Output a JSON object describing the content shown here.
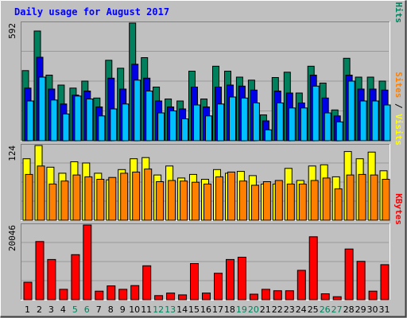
{
  "chart_data": {
    "type": "bar",
    "title": "Daily usage for August 2017",
    "colors": {
      "background": "#c0c0c0",
      "plot_bg": "#c0c0c0",
      "grid": "#9a9a9a",
      "hits": "#00805c",
      "files": "#0000e6",
      "pages": "#00c0ff",
      "visits": "#ffff00",
      "sites": "#ff8000",
      "kbytes": "#ff0000",
      "weekday_label": "#000000",
      "weekend_label": "#00805c",
      "title": "#0000ff",
      "slash": "#000000"
    },
    "days": [
      "1",
      "2",
      "3",
      "4",
      "5",
      "6",
      "7",
      "8",
      "9",
      "10",
      "11",
      "12",
      "13",
      "14",
      "15",
      "16",
      "17",
      "18",
      "19",
      "20",
      "21",
      "22",
      "23",
      "24",
      "25",
      "26",
      "27",
      "28",
      "29",
      "30",
      "31"
    ],
    "weekend_days": [
      "5",
      "6",
      "12",
      "13",
      "19",
      "20",
      "26",
      "27"
    ],
    "panels": [
      {
        "id": "usage",
        "max_label": "592",
        "ymax": 592,
        "side_labels": [
          {
            "text": "Pages",
            "color_key": "pages"
          },
          {
            "text": " / ",
            "color_key": "slash"
          },
          {
            "text": "Files",
            "color_key": "files"
          },
          {
            "text": " / ",
            "color_key": "slash"
          },
          {
            "text": "Hits",
            "color_key": "hits"
          }
        ],
        "series": [
          {
            "key": "hits",
            "values": [
              353,
              552,
              330,
              280,
              265,
              300,
              215,
              405,
              365,
              592,
              418,
              270,
              210,
              200,
              350,
              210,
              375,
              350,
              320,
              305,
              130,
              318,
              345,
              240,
              375,
              290,
              155,
              415,
              320,
              320,
              300
            ]
          },
          {
            "key": "files",
            "values": [
              265,
              420,
              260,
              185,
              230,
              250,
              170,
              315,
              260,
              385,
              315,
              200,
              170,
              160,
              270,
              170,
              270,
              280,
              275,
              255,
              100,
              250,
              240,
              190,
              330,
              215,
              125,
              330,
              260,
              260,
              255
            ]
          },
          {
            "key": "pages",
            "values": [
              200,
              320,
              205,
              135,
              225,
              210,
              125,
              160,
              185,
              305,
              250,
              140,
              150,
              110,
              180,
              125,
              185,
              220,
              215,
              190,
              55,
              190,
              165,
              165,
              275,
              140,
              95,
              300,
              200,
              200,
              180
            ]
          }
        ]
      },
      {
        "id": "visits",
        "max_label": "124",
        "ymax": 124,
        "side_labels": [
          {
            "text": "Sites",
            "color_key": "sites"
          },
          {
            "text": " / ",
            "color_key": "slash"
          },
          {
            "text": "Visits",
            "color_key": "visits"
          }
        ],
        "series": [
          {
            "key": "visits",
            "values": [
              102,
              124,
              88,
              78,
              97,
              95,
              78,
              67,
              84,
              102,
              104,
              75,
              90,
              70,
              76,
              68,
              84,
              78,
              81,
              74,
              60,
              60,
              86,
              66,
              90,
              92,
              72,
              114,
              102,
              113,
              82
            ]
          },
          {
            "key": "sites",
            "values": [
              76,
              90,
              60,
              65,
              75,
              72,
              68,
              71,
              78,
              80,
              85,
              64,
              66,
              65,
              63,
              60,
              72,
              80,
              65,
              58,
              64,
              66,
              60,
              60,
              66,
              70,
              52,
              75,
              76,
              75,
              68
            ]
          }
        ]
      },
      {
        "id": "kbytes",
        "max_label": "20046",
        "ymax": 20046,
        "side_labels": [
          {
            "text": "KBytes",
            "color_key": "kbytes"
          }
        ],
        "series": [
          {
            "key": "kbytes",
            "values": [
              4700,
              15600,
              10800,
              2800,
              12100,
              20046,
              2300,
              3700,
              2800,
              3800,
              9100,
              1100,
              1800,
              1300,
              9700,
              1800,
              7100,
              10800,
              11400,
              1500,
              2800,
              2400,
              2400,
              7900,
              16900,
              1600,
              800,
              13600,
              10300,
              2300,
              9400
            ]
          }
        ]
      }
    ]
  }
}
